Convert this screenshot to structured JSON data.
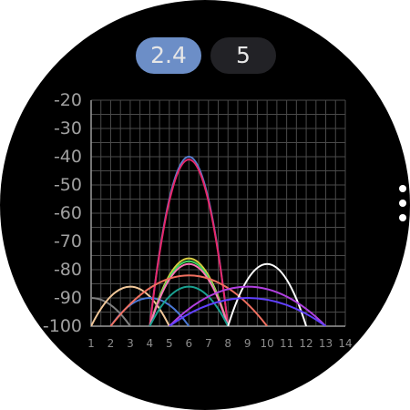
{
  "band_tabs": {
    "items": [
      {
        "label": "2.4",
        "active": true
      },
      {
        "label": "5",
        "active": false
      }
    ],
    "active_color": "#6c8ec7",
    "inactive_color": "#222226"
  },
  "page_indicator": {
    "count": 3,
    "color": "#ffffff"
  },
  "chart_data": {
    "type": "area",
    "title": "",
    "xlabel": "",
    "ylabel": "",
    "x_ticks": [
      "1",
      "2",
      "3",
      "4",
      "5",
      "6",
      "7",
      "8",
      "9",
      "10",
      "11",
      "12",
      "13",
      "14"
    ],
    "y_ticks": [
      "-20",
      "-30",
      "-40",
      "-50",
      "-60",
      "-70",
      "-80",
      "-90",
      "-100"
    ],
    "xlim": [
      1,
      14
    ],
    "ylim": [
      -100,
      -20
    ],
    "grid": true,
    "legend": "none",
    "grid_color": "#4a4a4a",
    "series": [
      {
        "channel": 1,
        "width": 2,
        "level": -90,
        "color": "#808080"
      },
      {
        "channel": 3,
        "width": 2,
        "level": -86,
        "color": "#f2c89a"
      },
      {
        "channel": 4,
        "width": 2,
        "level": -90,
        "color": "#4a78d6"
      },
      {
        "channel": 6,
        "width": 2,
        "level": -40,
        "color": "#5a7fd0"
      },
      {
        "channel": 6,
        "width": 2,
        "level": -41,
        "color": "#e8276a"
      },
      {
        "channel": 6,
        "width": 2,
        "level": -76,
        "color": "#d8d040"
      },
      {
        "channel": 6,
        "width": 2,
        "level": -77,
        "color": "#40d860"
      },
      {
        "channel": 6,
        "width": 2,
        "level": -78,
        "color": "#ff78b8"
      },
      {
        "channel": 6,
        "width": 2,
        "level": -86,
        "color": "#1aa090"
      },
      {
        "channel": 6,
        "width": 4,
        "level": -82,
        "color": "#f07060"
      },
      {
        "channel": 10,
        "width": 2,
        "level": -78,
        "color": "#ffffff"
      },
      {
        "channel": 9,
        "width": 4,
        "level": -86,
        "color": "#b040e0"
      },
      {
        "channel": 9,
        "width": 4,
        "level": -90,
        "color": "#6040ff"
      }
    ]
  }
}
